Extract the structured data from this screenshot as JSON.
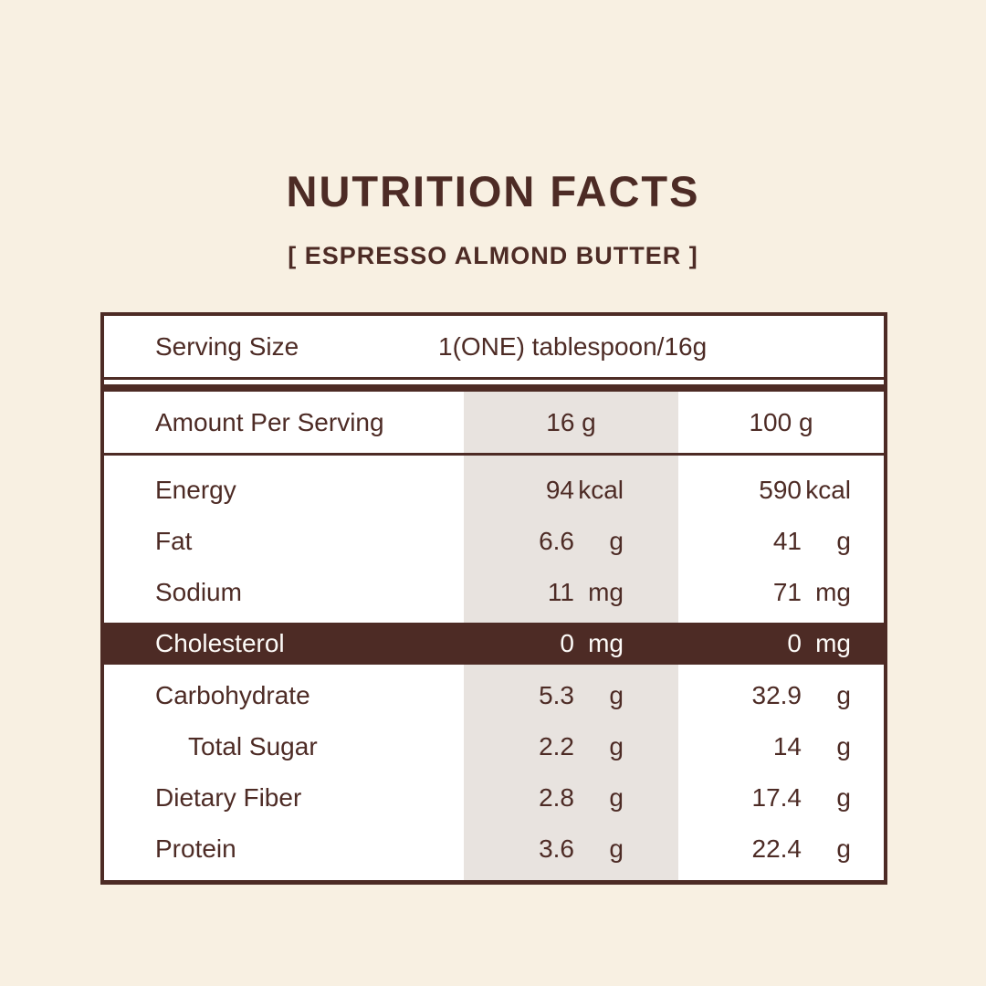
{
  "header": {
    "title": "NUTRITION FACTS",
    "subtitle": "[ ESPRESSO ALMOND BUTTER ]"
  },
  "colors": {
    "background": "#F8F0E2",
    "panel": "#FFFFFF",
    "brown": "#4D2B25",
    "stripe": "#E8E3DF",
    "highlight_row_bg": "#4D2B25",
    "highlight_row_text": "#FDFBF8"
  },
  "table": {
    "serving": {
      "label": "Serving Size",
      "value": "1(ONE) tablespoon/16g"
    },
    "columns": {
      "label": "Amount Per Serving",
      "col_16g": "16 g",
      "col_100g": "100 g"
    },
    "nutrients": [
      {
        "label": "Energy",
        "per_16g": "94",
        "per_100g": "590",
        "unit": "kcal"
      },
      {
        "label": "Fat",
        "per_16g": "6.6",
        "per_100g": "41",
        "unit": "g"
      },
      {
        "label": "Sodium",
        "per_16g": "11",
        "per_100g": "71",
        "unit": "mg"
      },
      {
        "label": "Cholesterol",
        "per_16g": "0",
        "per_100g": "0",
        "unit": "mg"
      },
      {
        "label": "Carbohydrate",
        "per_16g": "5.3",
        "per_100g": "32.9",
        "unit": "g"
      },
      {
        "label": "Total Sugar",
        "per_16g": "2.2",
        "per_100g": "14",
        "unit": "g"
      },
      {
        "label": "Dietary Fiber",
        "per_16g": "2.8",
        "per_100g": "17.4",
        "unit": "g"
      },
      {
        "label": "Protein",
        "per_16g": "3.6",
        "per_100g": "22.4",
        "unit": "g"
      }
    ]
  }
}
